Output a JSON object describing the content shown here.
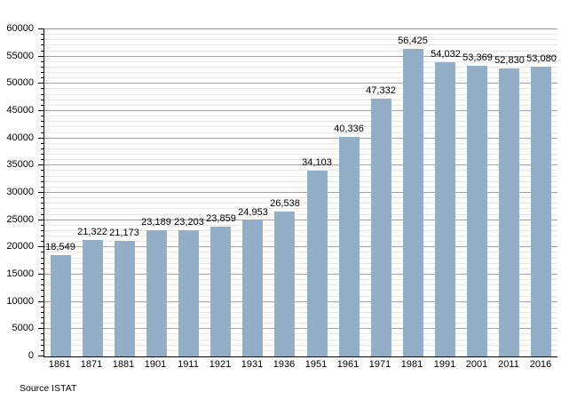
{
  "chart_data": {
    "type": "bar",
    "title": "",
    "xlabel": "",
    "ylabel": "",
    "source": "Source ISTAT",
    "categories": [
      "1861",
      "1871",
      "1881",
      "1901",
      "1911",
      "1921",
      "1931",
      "1936",
      "1951",
      "1961",
      "1971",
      "1981",
      "1991",
      "2001",
      "2011",
      "2016"
    ],
    "values": [
      18549,
      21322,
      21173,
      23189,
      23203,
      23859,
      24953,
      26538,
      34103,
      40336,
      47332,
      56425,
      54032,
      53369,
      52830,
      53080
    ],
    "value_labels": [
      "18,549",
      "21,322",
      "21,173",
      "23,189",
      "23,203",
      "23,859",
      "24,953",
      "26,538",
      "34,103",
      "40,336",
      "47,332",
      "56,425",
      "54,032",
      "53,369",
      "52,830",
      "53,080"
    ],
    "ylim": [
      0,
      60000
    ],
    "y_major_step": 5000,
    "y_minor_step": 1000,
    "y_tick_labels": [
      "0",
      "5000",
      "10000",
      "15000",
      "20000",
      "25000",
      "30000",
      "35000",
      "40000",
      "45000",
      "50000",
      "55000",
      "60000"
    ],
    "grid": "horizontal minor+major",
    "legend": "none",
    "bar_color": "#95aec8",
    "grid_minor_color": "#e7e7e7",
    "grid_major_color": "#a3a3a3",
    "axis_color": "#000000",
    "frame_top_color": "#999999"
  }
}
